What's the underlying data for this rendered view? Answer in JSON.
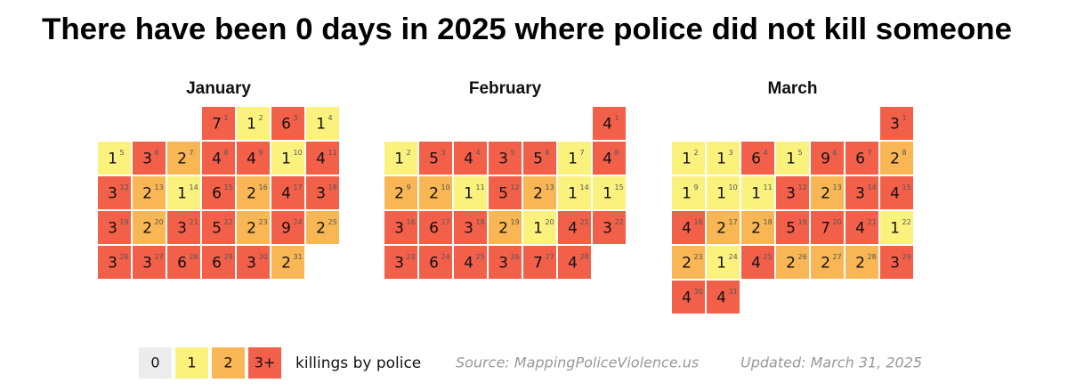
{
  "chart_data": {
    "type": "calendar_heatmap",
    "title": "There have been 0 days in 2025 where police did not kill someone",
    "months": [
      {
        "name": "January",
        "days": [
          1,
          2,
          3,
          4,
          5,
          6,
          7,
          8,
          9,
          10,
          11,
          12,
          13,
          14,
          15,
          16,
          17,
          18,
          19,
          20,
          21,
          22,
          23,
          24,
          25,
          26,
          27,
          28,
          29,
          30,
          31
        ],
        "values": [
          7,
          1,
          6,
          1,
          1,
          3,
          2,
          4,
          4,
          1,
          4,
          3,
          2,
          1,
          6,
          2,
          4,
          3,
          3,
          2,
          3,
          5,
          2,
          9,
          2,
          3,
          3,
          6,
          6,
          3,
          2
        ]
      },
      {
        "name": "February",
        "days": [
          1,
          2,
          3,
          4,
          5,
          6,
          7,
          8,
          9,
          10,
          11,
          12,
          13,
          14,
          15,
          16,
          17,
          18,
          19,
          20,
          21,
          22,
          23,
          24,
          25,
          26,
          27,
          28
        ],
        "values": [
          4,
          1,
          5,
          4,
          3,
          5,
          1,
          4,
          2,
          2,
          1,
          5,
          2,
          1,
          1,
          3,
          6,
          3,
          2,
          1,
          4,
          3,
          3,
          6,
          4,
          3,
          7,
          4
        ]
      },
      {
        "name": "March",
        "days": [
          1,
          2,
          3,
          4,
          5,
          6,
          7,
          8,
          9,
          10,
          11,
          12,
          13,
          14,
          15,
          16,
          17,
          18,
          19,
          20,
          21,
          22,
          23,
          24,
          25,
          26,
          27,
          28,
          29,
          30,
          31
        ],
        "values": [
          3,
          1,
          1,
          6,
          1,
          9,
          6,
          2,
          1,
          1,
          1,
          3,
          2,
          3,
          4,
          4,
          2,
          2,
          5,
          7,
          4,
          1,
          2,
          1,
          4,
          2,
          2,
          2,
          3,
          4,
          4
        ]
      }
    ],
    "legend": {
      "items": [
        {
          "value": 0,
          "label": "0",
          "color": "#ececec"
        },
        {
          "value": 1,
          "label": "1",
          "color": "#fbf27e"
        },
        {
          "value": 2,
          "label": "2",
          "color": "#f8b654"
        },
        {
          "value": 3,
          "label": "3+",
          "color": "#f2604a"
        }
      ],
      "caption": "killings by police"
    },
    "source": "Source: MappingPoliceViolence.us",
    "updated": "Updated: March 31, 2025"
  }
}
